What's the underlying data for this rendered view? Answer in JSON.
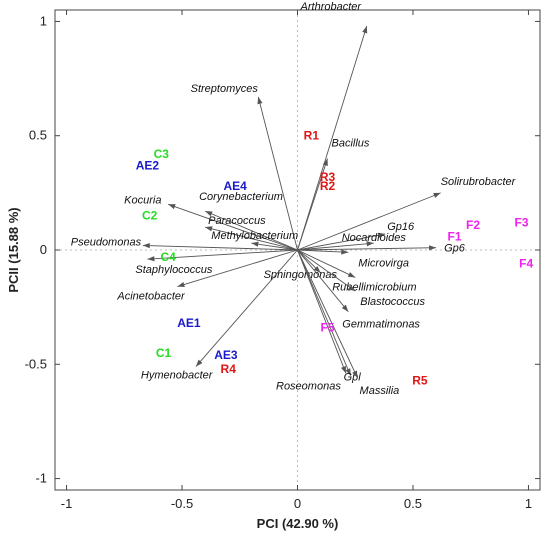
{
  "chart_data": {
    "type": "scatter",
    "subtype": "biplot",
    "xlabel": "PCI (42.90 %)",
    "ylabel": "PCII (15.88 %)",
    "xlim": [
      -1.05,
      1.05
    ],
    "ylim": [
      -1.05,
      1.05
    ],
    "xticks": [
      -1,
      -0.5,
      0,
      0.5,
      1
    ],
    "yticks": [
      -1,
      -0.5,
      0,
      0.5,
      1
    ],
    "xtick_labels": [
      "-1",
      "-0.5",
      "0",
      "0.5",
      "1"
    ],
    "ytick_labels": [
      "-1",
      "-0.5",
      "0",
      "0.5",
      "1"
    ],
    "grid": false,
    "zero_lines": true,
    "colors": {
      "vector": "#555555",
      "C": "#22dd22",
      "AE": "#1a1acc",
      "R": "#e01515",
      "F": "#ee22ee"
    },
    "vectors": [
      {
        "name": "Arthrobacter",
        "x": 0.3,
        "y": 0.98
      },
      {
        "name": "Streptomyces",
        "x": -0.17,
        "y": 0.67
      },
      {
        "name": "Bacillus",
        "x": 0.13,
        "y": 0.4
      },
      {
        "name": "Solirubrobacter",
        "x": 0.62,
        "y": 0.25
      },
      {
        "name": "Corynebacterium",
        "x": -0.4,
        "y": 0.17
      },
      {
        "name": "Kocuria",
        "x": -0.56,
        "y": 0.2
      },
      {
        "name": "Paracoccus",
        "x": -0.4,
        "y": 0.1
      },
      {
        "name": "Gp16",
        "x": 0.38,
        "y": 0.07
      },
      {
        "name": "Nocardioides",
        "x": 0.33,
        "y": 0.03
      },
      {
        "name": "Gp6",
        "x": 0.6,
        "y": 0.01
      },
      {
        "name": "Methylobacterium",
        "x": -0.2,
        "y": 0.03
      },
      {
        "name": "Microvirga",
        "x": 0.22,
        "y": -0.01
      },
      {
        "name": "Pseudomonas",
        "x": -0.67,
        "y": 0.02
      },
      {
        "name": "Staphylococcus",
        "x": -0.65,
        "y": -0.04
      },
      {
        "name": "Sphingomonas",
        "x": 0.1,
        "y": -0.1
      },
      {
        "name": "Rubellimicrobium",
        "x": 0.25,
        "y": -0.12
      },
      {
        "name": "Acinetobacter",
        "x": -0.52,
        "y": -0.16
      },
      {
        "name": "Blastococcus",
        "x": 0.25,
        "y": -0.18
      },
      {
        "name": "Gemmatimonas",
        "x": 0.22,
        "y": -0.27
      },
      {
        "name": "Hymenobacter",
        "x": -0.44,
        "y": -0.51
      },
      {
        "name": "Roseomonas",
        "x": 0.21,
        "y": -0.54
      },
      {
        "name": "Gpl",
        "x": 0.23,
        "y": -0.55
      },
      {
        "name": "Massilia",
        "x": 0.26,
        "y": -0.56
      }
    ],
    "samples": [
      {
        "name": "C1",
        "x": -0.58,
        "y": -0.45,
        "group": "C"
      },
      {
        "name": "C2",
        "x": -0.64,
        "y": 0.15,
        "group": "C"
      },
      {
        "name": "C3",
        "x": -0.59,
        "y": 0.42,
        "group": "C"
      },
      {
        "name": "C4",
        "x": -0.56,
        "y": -0.03,
        "group": "C"
      },
      {
        "name": "AE1",
        "x": -0.47,
        "y": -0.32,
        "group": "AE"
      },
      {
        "name": "AE2",
        "x": -0.65,
        "y": 0.37,
        "group": "AE"
      },
      {
        "name": "AE3",
        "x": -0.31,
        "y": -0.46,
        "group": "AE"
      },
      {
        "name": "AE4",
        "x": -0.27,
        "y": 0.28,
        "group": "AE"
      },
      {
        "name": "R1",
        "x": 0.06,
        "y": 0.5,
        "group": "R"
      },
      {
        "name": "R2",
        "x": 0.13,
        "y": 0.28,
        "group": "R"
      },
      {
        "name": "R3",
        "x": 0.13,
        "y": 0.32,
        "group": "R"
      },
      {
        "name": "R4",
        "x": -0.3,
        "y": -0.52,
        "group": "R"
      },
      {
        "name": "R5",
        "x": 0.53,
        "y": -0.57,
        "group": "R"
      },
      {
        "name": "F1",
        "x": 0.68,
        "y": 0.06,
        "group": "F"
      },
      {
        "name": "F2",
        "x": 0.76,
        "y": 0.11,
        "group": "F"
      },
      {
        "name": "F3",
        "x": 0.97,
        "y": 0.12,
        "group": "F"
      },
      {
        "name": "F4",
        "x": 0.99,
        "y": -0.06,
        "group": "F"
      },
      {
        "name": "F5",
        "x": 0.13,
        "y": -0.34,
        "group": "F"
      }
    ]
  }
}
